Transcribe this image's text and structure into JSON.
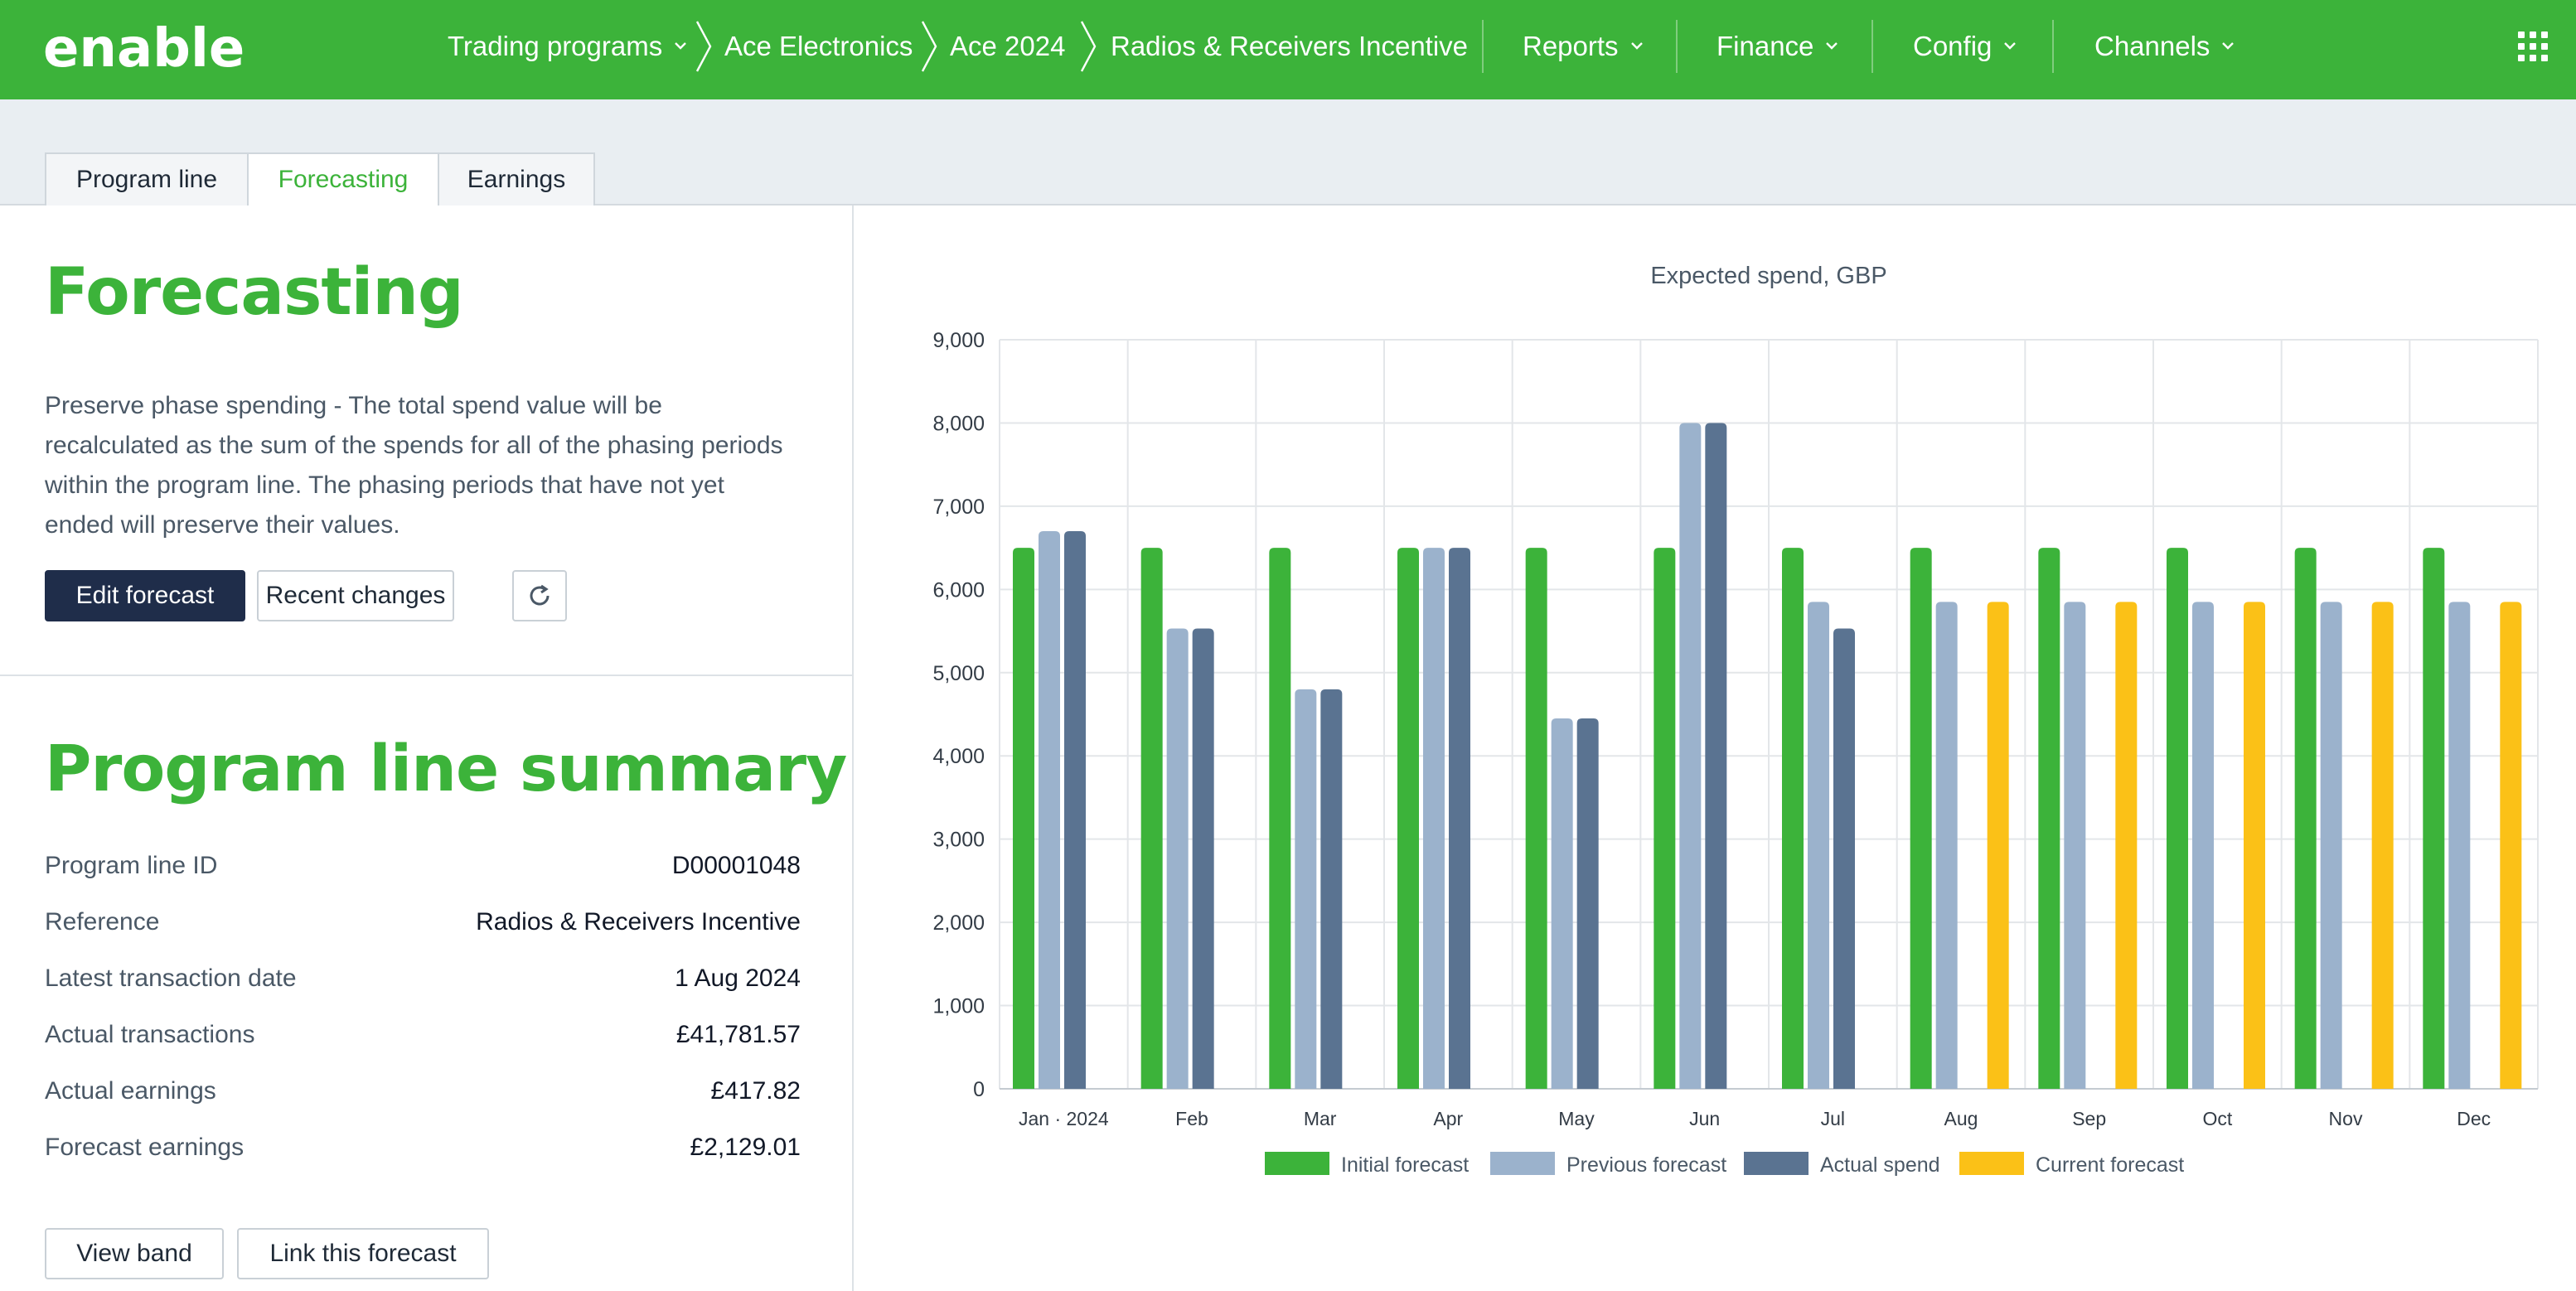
{
  "app": {
    "logo_text": "enable",
    "colors": {
      "brand": "#3cb33a",
      "dark_button": "#1f2d4a",
      "previous": "#9bb2cc",
      "actual": "#5a7391",
      "current": "#fbc117"
    }
  },
  "nav": {
    "trading_programs": "Trading programs",
    "breadcrumb": [
      "Ace Electronics",
      "Ace 2024",
      "Radios & Receivers Incentive"
    ],
    "reports": "Reports",
    "finance": "Finance",
    "config": "Config",
    "channels": "Channels",
    "apps_icon": "grid-icon"
  },
  "tabs": [
    {
      "label": "Program line"
    },
    {
      "label": "Forecasting",
      "active": true
    },
    {
      "label": "Earnings"
    }
  ],
  "forecasting": {
    "title": "Forecasting",
    "description": "Preserve phase spending - The total spend value will be recalculated as the sum of the spends for all of the phasing periods within the program line. The phasing periods that have not yet ended will preserve their values.",
    "edit_button": "Edit forecast",
    "recent_button": "Recent changes",
    "refresh_icon": "refresh-icon"
  },
  "summary": {
    "title": "Program line summary",
    "rows": [
      {
        "label": "Program line ID",
        "value": "D00001048"
      },
      {
        "label": "Reference",
        "value": "Radios & Receivers Incentive"
      },
      {
        "label": "Latest transaction date",
        "value": "1 Aug 2024"
      },
      {
        "label": "Actual transactions",
        "value": "£41,781.57"
      },
      {
        "label": "Actual earnings",
        "value": "£417.82"
      },
      {
        "label": "Forecast earnings",
        "value": "£2,129.01"
      }
    ],
    "view_band_button": "View band",
    "link_button": "Link this forecast"
  },
  "chart_data": {
    "type": "bar",
    "title": "Expected spend, GBP",
    "categories": [
      "Jan · 2024",
      "Feb",
      "Mar",
      "Apr",
      "May",
      "Jun",
      "Jul",
      "Aug",
      "Sep",
      "Oct",
      "Nov",
      "Dec"
    ],
    "ylim": [
      0,
      9000
    ],
    "yticks": [
      0,
      1000,
      2000,
      3000,
      4000,
      5000,
      6000,
      7000,
      8000,
      9000
    ],
    "ytick_labels": [
      "0",
      "1,000",
      "2,000",
      "3,000",
      "4,000",
      "5,000",
      "6,000",
      "7,000",
      "8,000",
      "9,000"
    ],
    "grid": true,
    "legend_position": "bottom",
    "series": [
      {
        "name": "Initial forecast",
        "color": "#3cb33a",
        "values": [
          6500,
          6500,
          6500,
          6500,
          6500,
          6500,
          6500,
          6500,
          6500,
          6500,
          6500,
          6500
        ]
      },
      {
        "name": "Previous forecast",
        "color": "#9bb2cc",
        "values": [
          6700,
          5530,
          4800,
          6500,
          4450,
          8000,
          5850,
          5850,
          5850,
          5850,
          5850,
          5850
        ]
      },
      {
        "name": "Actual spend",
        "color": "#5a7391",
        "values": [
          6700,
          5530,
          4800,
          6500,
          4450,
          8000,
          5530,
          null,
          null,
          null,
          null,
          null
        ]
      },
      {
        "name": "Current forecast",
        "color": "#fbc117",
        "values": [
          null,
          null,
          null,
          null,
          null,
          null,
          null,
          5850,
          5850,
          5850,
          5850,
          5850
        ]
      }
    ]
  }
}
